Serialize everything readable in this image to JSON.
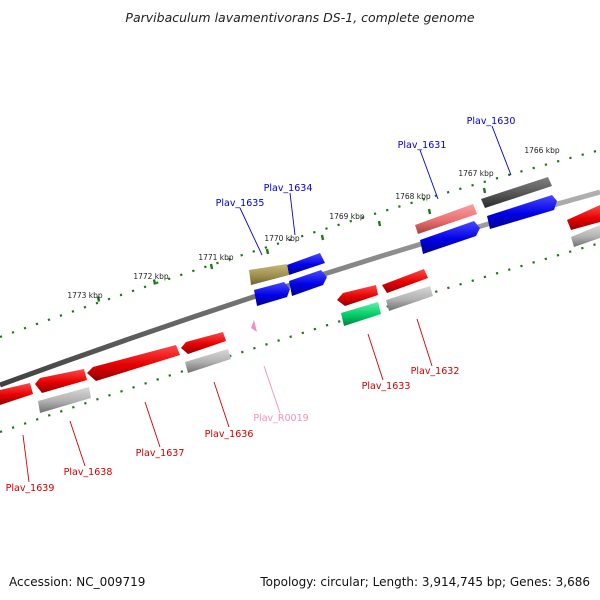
{
  "header": {
    "title": "Parvibaculum lavamentivorans DS-1, complete genome"
  },
  "footer": {
    "accession": "Accession: NC_009719",
    "summary": "Topology: circular; Length: 3,914,745 bp; Genes: 3,686"
  },
  "ruler": {
    "ticks": [
      "1766 kbp",
      "1767 kbp",
      "1768 kbp",
      "1769 kbp",
      "1770 kbp",
      "1771 kbp",
      "1772 kbp",
      "1773 kbp"
    ]
  },
  "genes": [
    {
      "label": "Plav_1630",
      "color": "#0000cc"
    },
    {
      "label": "Plav_1631",
      "color": "#0000cc"
    },
    {
      "label": "Plav_1632",
      "color": "#cc0000"
    },
    {
      "label": "Plav_1633",
      "color": "#cc0000"
    },
    {
      "label": "Plav_1634",
      "color": "#0000cc"
    },
    {
      "label": "Plav_1635",
      "color": "#0000cc"
    },
    {
      "label": "Plav_R0019",
      "color": "#f090c0"
    },
    {
      "label": "Plav_1636",
      "color": "#cc0000"
    },
    {
      "label": "Plav_1637",
      "color": "#cc0000"
    },
    {
      "label": "Plav_1638",
      "color": "#cc0000"
    },
    {
      "label": "Plav_1639",
      "color": "#cc0000"
    }
  ],
  "colors": {
    "forward_strand": "#0000ee",
    "reverse_strand": "#ee0000",
    "hypothetical": "#b0b0b0",
    "dark_feature": "#555555",
    "salmon_feature": "#e87070",
    "olive_feature": "#a09050",
    "green_feature": "#00cc66",
    "rna_feature": "#f090c0",
    "backbone": "#808080",
    "dots": "#1a7a1a"
  }
}
